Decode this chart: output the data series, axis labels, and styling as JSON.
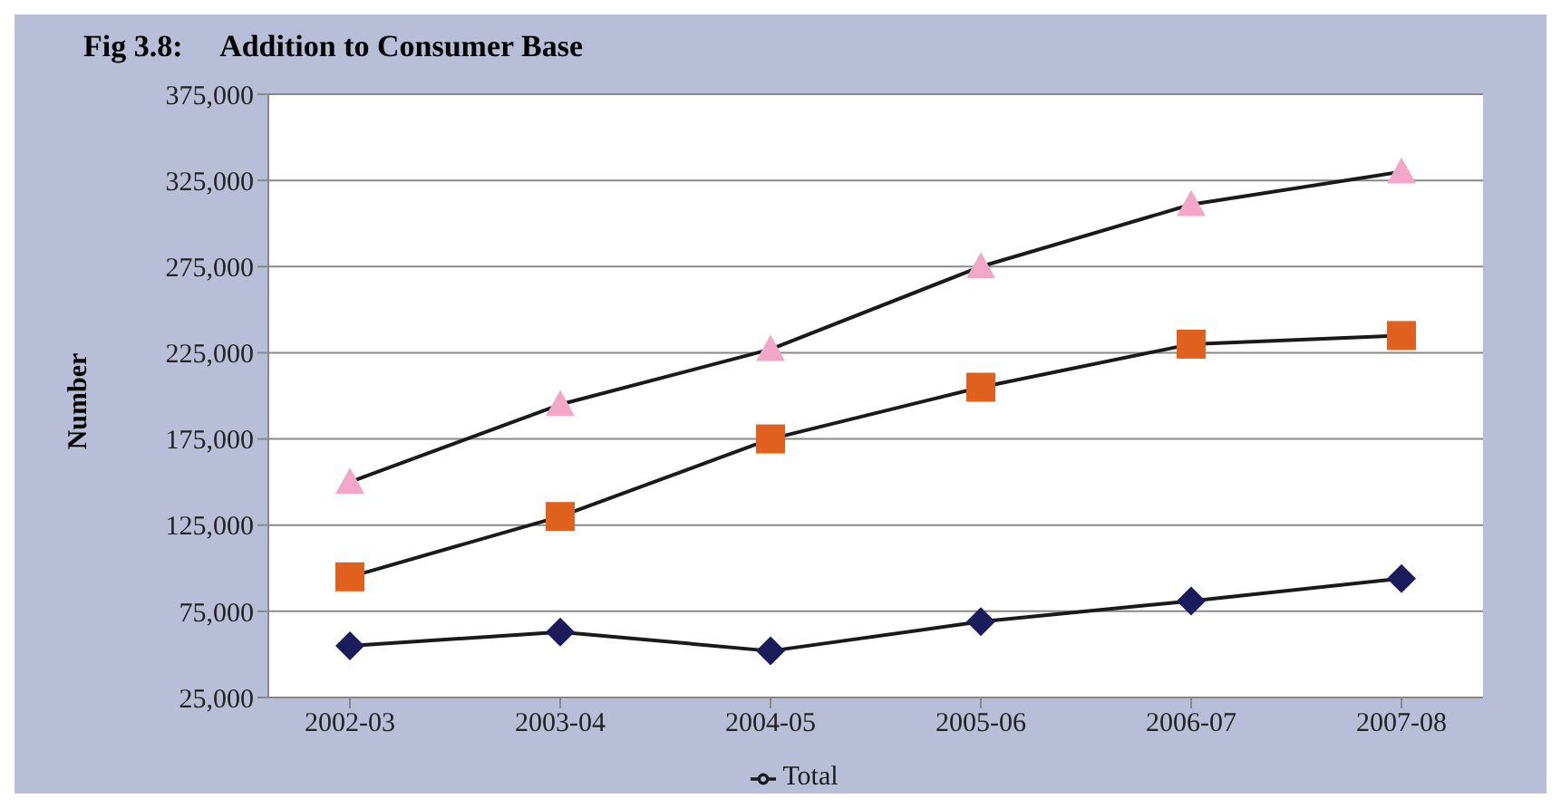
{
  "chart_data": {
    "type": "line",
    "title": "Fig 3.8:     Addition to Consumer Base",
    "ylabel": "Number",
    "categories": [
      "2002-03",
      "2003-04",
      "2004-05",
      "2005-06",
      "2006-07",
      "2007-08"
    ],
    "series": [
      {
        "color": "#e0601e",
        "marker": "square",
        "values": [
          95000,
          130000,
          175000,
          205000,
          230000,
          235000
        ]
      },
      {
        "color": "#1c1c5c",
        "marker": "diamond",
        "values": [
          55000,
          63000,
          52000,
          69000,
          81000,
          94000
        ]
      },
      {
        "name": "Total",
        "color": "#f2a6c8",
        "marker": "triangle",
        "values": [
          150000,
          195000,
          227000,
          275000,
          311000,
          330000
        ]
      }
    ],
    "ylim": [
      25000,
      375000
    ],
    "yticks": [
      {
        "value": 25000,
        "label": "25,000"
      },
      {
        "value": 75000,
        "label": "75,000"
      },
      {
        "value": 125000,
        "label": "125,000"
      },
      {
        "value": 175000,
        "label": "175,000"
      },
      {
        "value": 225000,
        "label": "225,000"
      },
      {
        "value": 275000,
        "label": "275,000"
      },
      {
        "value": 325000,
        "label": "325,000"
      },
      {
        "value": 375000,
        "label": "375,000"
      }
    ],
    "grid": "y",
    "legend": "bottom"
  }
}
